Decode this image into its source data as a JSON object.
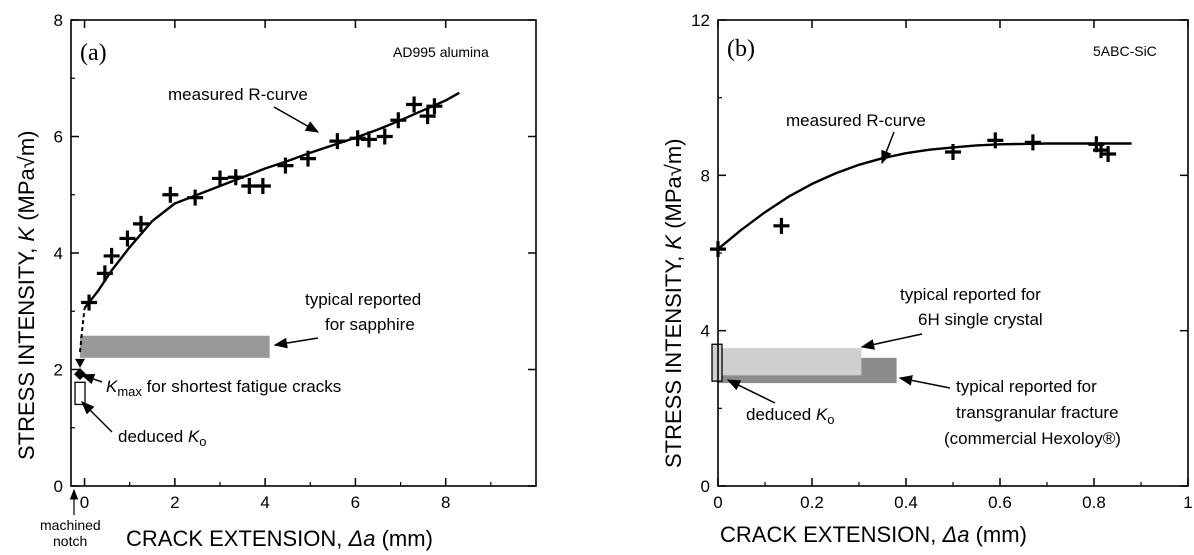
{
  "figure": {
    "panels": [
      {
        "panel_label": "(a)",
        "material": "AD995 alumina",
        "ylabel_main": "STRESS INTENSITY, ",
        "ylabel_var": "K",
        "ylabel_unit": " (MPa√m)",
        "xlabel_main": "CRACK EXTENSION, ",
        "xlabel_var": "Δa",
        "xlabel_unit": " (mm)",
        "annotations": {
          "rcurve": "measured R-curve",
          "typical_line1": "typical reported",
          "typical_line2": "for sapphire",
          "kmax_sym": "K",
          "kmax_sub": "max",
          "kmax_rest": " for shortest fatigue cracks",
          "deduced": "deduced ",
          "deduced_sym": "K",
          "deduced_sub": "o",
          "machined_line1": "machined",
          "machined_line2": "notch"
        }
      },
      {
        "panel_label": "(b)",
        "material": "5ABC-SiC",
        "ylabel_main": "STRESS INTENSITY, ",
        "ylabel_var": "K",
        "ylabel_unit": " (MPa√m)",
        "xlabel_main": "CRACK EXTENSION, ",
        "xlabel_var": "Δa",
        "xlabel_unit": " (mm)",
        "annotations": {
          "rcurve": "measured R-curve",
          "typical6h_line1": "typical reported for",
          "typical6h_line2": "6H single crystal",
          "typicaltg_line1": "typical reported for",
          "typicaltg_line2": "transgranular fracture",
          "typicaltg_line3": "(commercial Hexoloy®)",
          "deduced": "deduced ",
          "deduced_sym": "K",
          "deduced_sub": "o"
        }
      }
    ]
  },
  "chart_data": [
    {
      "type": "scatter",
      "xlim": [
        -0.3,
        10
      ],
      "ylim": [
        0,
        8
      ],
      "xticks": [
        0,
        2,
        4,
        6,
        8
      ],
      "yticks": [
        0,
        2,
        4,
        6,
        8
      ],
      "grid": false,
      "points": {
        "x": [
          0.1,
          0.45,
          0.6,
          0.95,
          1.25,
          1.9,
          2.45,
          3.0,
          3.35,
          3.65,
          3.95,
          4.45,
          4.95,
          5.6,
          6.05,
          6.3,
          6.65,
          6.95,
          7.3,
          7.6,
          7.75
        ],
        "y": [
          3.15,
          3.65,
          3.95,
          4.25,
          4.5,
          5.0,
          4.95,
          5.28,
          5.3,
          5.15,
          5.15,
          5.5,
          5.62,
          5.92,
          5.97,
          5.95,
          6.0,
          6.28,
          6.55,
          6.35,
          6.52
        ]
      },
      "rcurve": {
        "x": [
          0.0,
          0.3,
          0.6,
          1.0,
          1.5,
          2.0,
          2.5,
          3.0,
          3.5,
          4.0,
          4.5,
          5.0,
          5.5,
          6.0,
          6.5,
          7.0,
          7.5,
          8.0,
          8.3
        ],
        "y": [
          3.05,
          3.35,
          3.7,
          4.1,
          4.55,
          4.85,
          5.0,
          5.15,
          5.3,
          5.45,
          5.58,
          5.72,
          5.85,
          5.98,
          6.12,
          6.28,
          6.45,
          6.62,
          6.75
        ]
      },
      "rcurve_extrapolation": {
        "x": [
          -0.1,
          -0.05,
          0.0
        ],
        "y": [
          2.3,
          2.7,
          3.05
        ]
      },
      "kmax_point": {
        "x": -0.1,
        "y": 1.92
      },
      "kmax_triangle": {
        "x": -0.1,
        "y": 2.08
      },
      "deduced_k0_range": [
        1.4,
        1.78
      ],
      "sapphire_band": {
        "x": [
          -0.1,
          4.1
        ],
        "y": [
          2.2,
          2.58
        ]
      }
    },
    {
      "type": "scatter",
      "xlim": [
        0,
        1
      ],
      "ylim": [
        0,
        12
      ],
      "xticks": [
        0,
        0.2,
        0.4,
        0.6,
        0.8,
        1
      ],
      "yticks": [
        0,
        4,
        8,
        12
      ],
      "grid": false,
      "points": {
        "x": [
          0.0,
          0.135,
          0.5,
          0.59,
          0.67,
          0.805,
          0.815,
          0.83
        ],
        "y": [
          6.1,
          6.7,
          8.6,
          8.9,
          8.85,
          8.8,
          8.65,
          8.55
        ]
      },
      "rcurve": {
        "x": [
          0.0,
          0.05,
          0.1,
          0.15,
          0.2,
          0.25,
          0.3,
          0.35,
          0.4,
          0.45,
          0.5,
          0.55,
          0.6,
          0.65,
          0.7,
          0.75,
          0.8,
          0.85,
          0.88
        ],
        "y": [
          6.1,
          6.6,
          7.05,
          7.45,
          7.78,
          8.05,
          8.27,
          8.44,
          8.57,
          8.66,
          8.72,
          8.77,
          8.8,
          8.81,
          8.82,
          8.82,
          8.82,
          8.82,
          8.82
        ]
      },
      "deduced_k0_range": [
        2.7,
        3.65
      ],
      "band_6h": {
        "x": [
          0.0,
          0.305
        ],
        "y": [
          2.85,
          3.55
        ]
      },
      "band_transgranular": {
        "x": [
          0.0,
          0.38
        ],
        "y": [
          2.65,
          3.3
        ]
      }
    }
  ]
}
